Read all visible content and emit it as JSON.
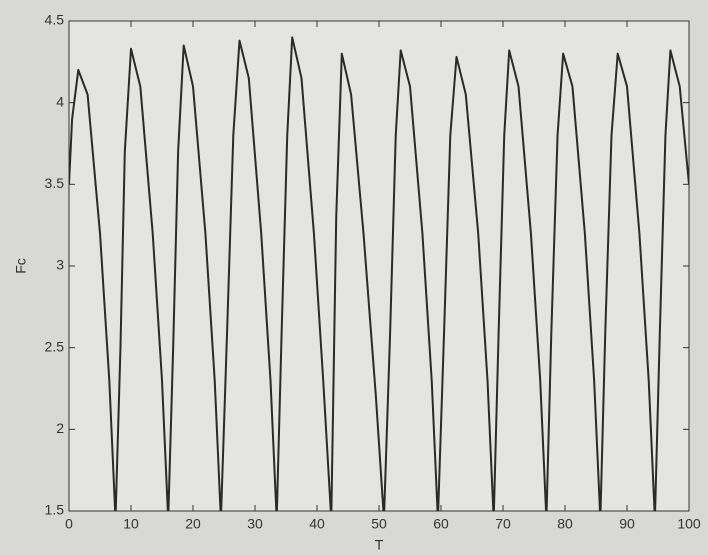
{
  "chart_data": {
    "type": "line",
    "xlabel": "T",
    "ylabel": "Fc",
    "x": [
      0,
      0.5,
      1.5,
      3,
      5,
      6.5,
      7.5,
      8.3,
      9,
      10,
      11.5,
      13.5,
      15,
      16,
      16.8,
      17.6,
      18.5,
      20,
      22,
      23.5,
      24.5,
      25.5,
      26.5,
      27.5,
      29,
      31,
      32.5,
      33.5,
      34.3,
      35.2,
      36,
      37.5,
      39.5,
      41,
      42.3,
      43.1,
      44,
      45.5,
      47.5,
      49.5,
      50.8,
      51.8,
      52.7,
      53.5,
      55,
      57,
      58.5,
      59.5,
      60.5,
      61.5,
      62.5,
      64,
      66,
      67.5,
      68.5,
      69.3,
      70.2,
      71,
      72.5,
      74.5,
      76,
      77,
      77.8,
      78.8,
      79.7,
      81.2,
      83.2,
      84.7,
      85.7,
      86.5,
      87.5,
      88.5,
      90,
      92,
      93.5,
      94.5,
      95.3,
      96.2,
      97,
      98.5,
      100
    ],
    "values": [
      3.5,
      3.9,
      4.2,
      4.05,
      3.2,
      2.3,
      1.45,
      2.5,
      3.7,
      4.33,
      4.1,
      3.2,
      2.3,
      1.45,
      2.5,
      3.7,
      4.35,
      4.1,
      3.2,
      2.3,
      1.45,
      2.6,
      3.8,
      4.38,
      4.15,
      3.2,
      2.3,
      1.45,
      2.6,
      3.8,
      4.4,
      4.15,
      3.2,
      2.3,
      1.45,
      3.3,
      4.3,
      4.05,
      3.2,
      2.2,
      1.45,
      2.6,
      3.8,
      4.32,
      4.1,
      3.2,
      2.3,
      1.45,
      2.6,
      3.8,
      4.28,
      4.05,
      3.2,
      2.3,
      1.45,
      2.6,
      3.8,
      4.32,
      4.1,
      3.2,
      2.3,
      1.45,
      2.6,
      3.8,
      4.3,
      4.1,
      3.2,
      2.3,
      1.45,
      2.6,
      3.8,
      4.3,
      4.1,
      3.2,
      2.3,
      1.45,
      2.6,
      3.8,
      4.32,
      4.1,
      3.5
    ],
    "color": "#2a2a2a",
    "xlim": [
      0,
      100
    ],
    "xticks": [
      0,
      10,
      20,
      30,
      40,
      50,
      60,
      70,
      80,
      90,
      100
    ],
    "ylim": [
      1.5,
      4.5
    ],
    "yticks": [
      1.5,
      2,
      2.5,
      3,
      3.5,
      4,
      4.5
    ]
  }
}
